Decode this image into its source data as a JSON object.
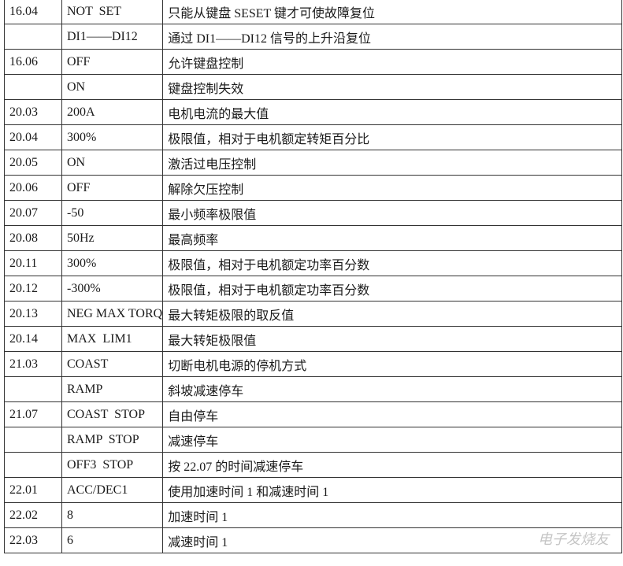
{
  "table": {
    "rows": [
      [
        "16.04",
        "NOT  SET",
        "只能从键盘 SESET 键才可使故障复位"
      ],
      [
        null,
        "DI1——DI12",
        "通过 DI1——DI12 信号的上升沿复位"
      ],
      [
        "16.06",
        "OFF",
        "允许键盘控制"
      ],
      [
        null,
        "ON",
        "键盘控制失效"
      ],
      [
        "20.03",
        "200A",
        "电机电流的最大值"
      ],
      [
        "20.04",
        "300%",
        "极限值，相对于电机额定转矩百分比"
      ],
      [
        "20.05",
        "ON",
        "激活过电压控制"
      ],
      [
        "20.06",
        "OFF",
        "解除欠压控制"
      ],
      [
        "20.07",
        "-50",
        "最小频率极限值"
      ],
      [
        "20.08",
        "50Hz",
        "最高频率"
      ],
      [
        "20.11",
        "300%",
        "极限值，相对于电机额定功率百分数"
      ],
      [
        "20.12",
        "-300%",
        "极限值，相对于电机额定功率百分数"
      ],
      [
        "20.13",
        "NEG MAX TORQ",
        "最大转矩极限的取反值"
      ],
      [
        "20.14",
        "MAX  LIM1",
        "最大转矩极限值"
      ],
      [
        "21.03",
        "COAST",
        "切断电机电源的停机方式"
      ],
      [
        null,
        "RAMP",
        "斜坡减速停车"
      ],
      [
        "21.07",
        "COAST  STOP",
        "自由停车"
      ],
      [
        null,
        "RAMP  STOP",
        "减速停车"
      ],
      [
        null,
        "OFF3  STOP",
        "按 22.07 的时间减速停车"
      ],
      [
        "22.01",
        "ACC/DEC1",
        "使用加速时间 1 和减速时间 1"
      ],
      [
        "22.02",
        "8",
        "加速时间 1"
      ],
      [
        "22.03",
        "6",
        "减速时间 1"
      ]
    ]
  },
  "watermark": "电子发烧友"
}
